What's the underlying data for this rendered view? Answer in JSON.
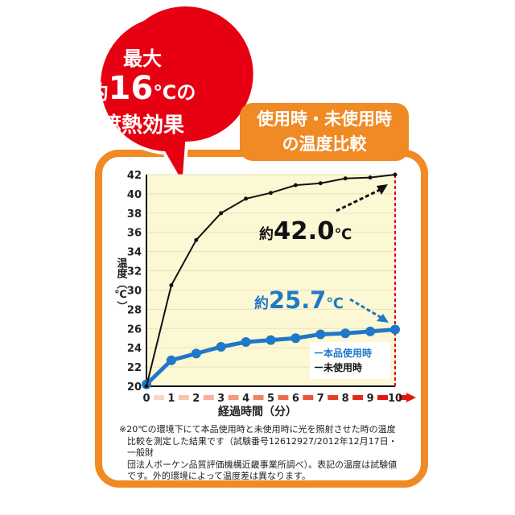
{
  "badge": {
    "line1": "最大",
    "line2_prefix": "約",
    "line2_value": "16",
    "line2_unit": "℃の",
    "line3": "遮熱効果",
    "color": "#e60012"
  },
  "title": {
    "line1": "使用時・未使用時",
    "line2": "の温度比較",
    "color": "#f08a24"
  },
  "chart_data": {
    "type": "line",
    "xlabel": "経過時間（分）",
    "ylabel": "温度（℃）",
    "x": [
      0,
      1,
      2,
      3,
      4,
      5,
      6,
      7,
      8,
      9,
      10
    ],
    "xlim": [
      0,
      10
    ],
    "ylim": [
      20,
      42
    ],
    "yticks": [
      20,
      22,
      24,
      26,
      28,
      30,
      32,
      34,
      36,
      38,
      40,
      42
    ],
    "grid": true,
    "legend_position": "bottom-right",
    "series": [
      {
        "name": "本品使用時",
        "color": "#1f78c8",
        "values": [
          20.2,
          22.7,
          23.4,
          24.1,
          24.6,
          24.8,
          25.0,
          25.4,
          25.5,
          25.7,
          25.9
        ]
      },
      {
        "name": "未使用時",
        "color": "#111111",
        "values": [
          20.0,
          30.5,
          35.2,
          38.0,
          39.5,
          40.1,
          40.9,
          41.1,
          41.6,
          41.7,
          42.0
        ]
      }
    ],
    "annotations": [
      {
        "prefix": "約",
        "value": "42.0",
        "unit": "℃",
        "color": "#111111"
      },
      {
        "prefix": "約",
        "value": "25.7",
        "unit": "℃",
        "color": "#1f78c8"
      }
    ]
  },
  "note": [
    "※20℃の環境下にて本品使用時と未使用時に光を照射させた時の温度",
    "比較を測定した結果です（試験番号12612927/2012年12月17日・一般財",
    "団法人ボーケン品質評価機構近畿事業所調べ）。表記の温度は試験値",
    "です。外的環境によって温度差は異なります。"
  ]
}
